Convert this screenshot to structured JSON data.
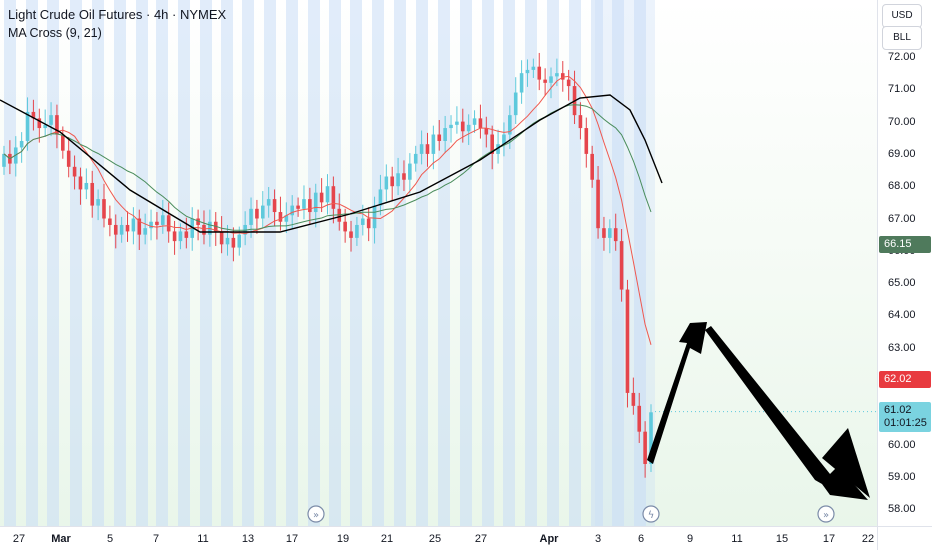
{
  "header": {
    "title": "Light Crude Oil Futures · 4h · NYMEX",
    "indicator": "MA Cross (9, 21)"
  },
  "price_axis": {
    "currency_button": "USD",
    "unit_button": "BLL",
    "ticks": [
      "72.00",
      "71.00",
      "70.00",
      "69.00",
      "68.00",
      "67.00",
      "66.00",
      "65.00",
      "64.00",
      "63.00",
      "62.00",
      "61.00",
      "60.00",
      "59.00",
      "58.00"
    ],
    "labels": {
      "ma_slow": {
        "value": "66.15",
        "color": "#4f7a5c"
      },
      "ma_fast": {
        "value": "62.02",
        "color": "#e83a3f"
      },
      "last": {
        "value": "61.02",
        "countdown": "01:01:25",
        "color": "#7ad3e0"
      }
    }
  },
  "time_axis": {
    "ticks": [
      "27",
      "Mar",
      "5",
      "7",
      "11",
      "13",
      "17",
      "19",
      "21",
      "25",
      "27",
      "Apr",
      "3",
      "6",
      "9",
      "11",
      "15",
      "17",
      "22"
    ]
  },
  "colors": {
    "up": "#5ec9dc",
    "down": "#e5454c",
    "ma_fast": "#f0584e",
    "ma_slow": "#4a8d5c",
    "ma_long": "#000000",
    "session_band": "#c8ddf5",
    "arrow": "#000000"
  },
  "icons": [
    "replay-icon",
    "flash-icon",
    "replay-icon"
  ]
}
